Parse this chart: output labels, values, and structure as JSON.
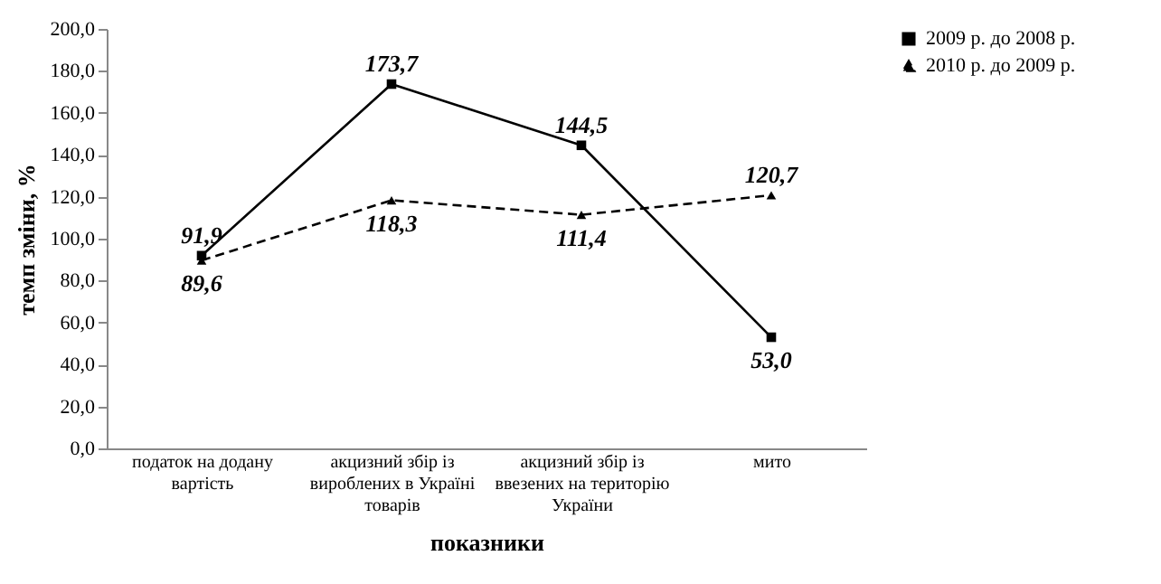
{
  "chart_data": {
    "type": "line",
    "xlabel": "показники",
    "ylabel": "темп зміни, %",
    "categories": [
      "податок на додану вартість",
      "акцизний збір із вироблених в Україні товарів",
      "акцизний збір із ввезених на територію України",
      "мито"
    ],
    "series": [
      {
        "name": "2009 р. до 2008 р.",
        "color": "#000000",
        "values": [
          91.9,
          173.7,
          144.5,
          53.0
        ],
        "value_labels": [
          "91,9",
          "173,7",
          "144,5",
          "53,0"
        ],
        "marker": "square",
        "line_style": "solid"
      },
      {
        "name": "2010 р. до 2009 р.",
        "color": "#000000",
        "values": [
          89.6,
          118.3,
          111.4,
          120.7
        ],
        "value_labels": [
          "89,6",
          "118,3",
          "111,4",
          "120,7"
        ],
        "marker": "triangle",
        "line_style": "dashed"
      }
    ],
    "ylim": [
      0,
      200
    ],
    "yticks": [
      {
        "value": 0,
        "label": "0,0"
      },
      {
        "value": 20,
        "label": "20,0"
      },
      {
        "value": 40,
        "label": "40,0"
      },
      {
        "value": 60,
        "label": "60,0"
      },
      {
        "value": 80,
        "label": "80,0"
      },
      {
        "value": 100,
        "label": "100,0"
      },
      {
        "value": 120,
        "label": "120,0"
      },
      {
        "value": 140,
        "label": "140,0"
      },
      {
        "value": 160,
        "label": "160,0"
      },
      {
        "value": 180,
        "label": "180,0"
      },
      {
        "value": 200,
        "label": "200,0"
      }
    ],
    "grid": false,
    "legend": "right"
  }
}
